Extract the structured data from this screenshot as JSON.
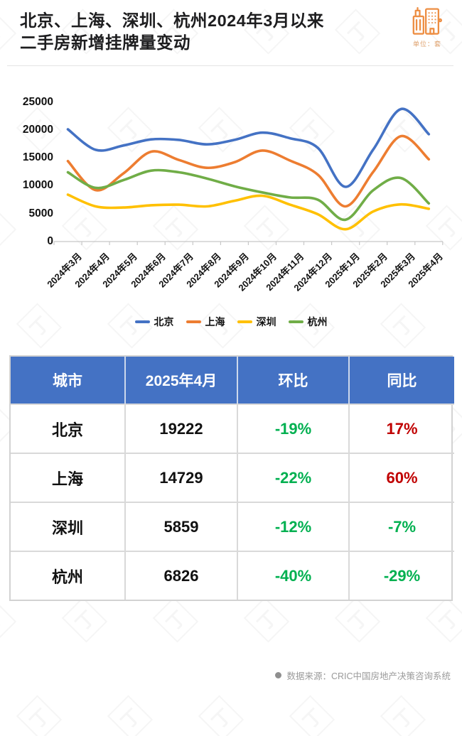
{
  "header": {
    "title_line1": "北京、上海、深圳、杭州2024年3月以来",
    "title_line2": "二手房新增挂牌量变动",
    "unit_label": "单位：套",
    "icon_color": "#ed8e43"
  },
  "chart_data": {
    "type": "line",
    "title": "北京、上海、深圳、杭州2024年3月以来二手房新增挂牌量变动",
    "unit": "套",
    "smooth": true,
    "grid": false,
    "legend_position": "bottom",
    "ylim": [
      0,
      25000
    ],
    "yticks": [
      0,
      5000,
      10000,
      15000,
      20000,
      25000
    ],
    "x": [
      "2024年3月",
      "2024年4月",
      "2024年5月",
      "2024年6月",
      "2024年7月",
      "2024年8月",
      "2024年9月",
      "2024年10月",
      "2024年11月",
      "2024年12月",
      "2025年1月",
      "2025年2月",
      "2025年3月",
      "2025年4月"
    ],
    "series": [
      {
        "name": "北京",
        "color": "#4472C4",
        "values": [
          20100,
          16429,
          17200,
          18300,
          18200,
          17400,
          18200,
          19500,
          18500,
          16800,
          9800,
          16500,
          23731,
          19222
        ]
      },
      {
        "name": "上海",
        "color": "#ED7D31",
        "values": [
          14400,
          9206,
          12200,
          16100,
          14600,
          13200,
          14200,
          16300,
          14500,
          12000,
          6300,
          12500,
          18883,
          14729
        ]
      },
      {
        "name": "深圳",
        "color": "#FFC000",
        "values": [
          8400,
          6300,
          6100,
          6500,
          6600,
          6300,
          7300,
          8200,
          6600,
          4900,
          2200,
          5400,
          6658,
          5859
        ]
      },
      {
        "name": "杭州",
        "color": "#70AD47",
        "values": [
          12400,
          9614,
          11000,
          12700,
          12400,
          11300,
          9900,
          8800,
          7900,
          7500,
          3900,
          9200,
          11377,
          6826
        ]
      }
    ]
  },
  "table": {
    "headers": [
      "城市",
      "2025年4月",
      "环比",
      "同比"
    ],
    "rows": [
      {
        "city": "北京",
        "value": "19222",
        "mom": "-19%",
        "yoy": "17%"
      },
      {
        "city": "上海",
        "value": "14729",
        "mom": "-22%",
        "yoy": "60%"
      },
      {
        "city": "深圳",
        "value": "5859",
        "mom": "-12%",
        "yoy": "-7%"
      },
      {
        "city": "杭州",
        "value": "6826",
        "mom": "-40%",
        "yoy": "-29%"
      }
    ],
    "header_bg": "#4472C4",
    "positive_color": "#C00000",
    "negative_color": "#00B050"
  },
  "footer": {
    "source": "数据来源：CRIC中国房地产决策咨询系统"
  },
  "watermark": {
    "glyph": "丁"
  }
}
